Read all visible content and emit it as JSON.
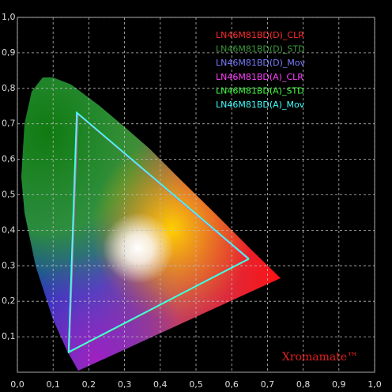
{
  "chart_data": {
    "type": "line",
    "watermark": "Xromamate™",
    "xlim": [
      0,
      1
    ],
    "ylim": [
      0,
      1
    ],
    "xticks": [
      {
        "value": 0,
        "label": "0,0"
      },
      {
        "value": 0.1,
        "label": "0,1"
      },
      {
        "value": 0.2,
        "label": "0,2"
      },
      {
        "value": 0.3,
        "label": "0,3"
      },
      {
        "value": 0.4,
        "label": "0,4"
      },
      {
        "value": 0.5,
        "label": "0,5"
      },
      {
        "value": 0.6,
        "label": "0,6"
      },
      {
        "value": 0.7,
        "label": "0,7"
      },
      {
        "value": 0.8,
        "label": "0,8"
      },
      {
        "value": 0.9,
        "label": "0,9"
      },
      {
        "value": 1,
        "label": "1,0"
      }
    ],
    "yticks": [
      {
        "value": 0.1,
        "label": "0,1"
      },
      {
        "value": 0.2,
        "label": "0,2"
      },
      {
        "value": 0.3,
        "label": "0,3"
      },
      {
        "value": 0.4,
        "label": "0,4"
      },
      {
        "value": 0.5,
        "label": "0,5"
      },
      {
        "value": 0.6,
        "label": "0,6"
      },
      {
        "value": 0.7,
        "label": "0,7"
      },
      {
        "value": 0.8,
        "label": "0,8"
      },
      {
        "value": 0.9,
        "label": "0,9"
      },
      {
        "value": 1,
        "label": "1,0"
      }
    ],
    "grid": true,
    "series": [
      {
        "name": "LN46M81BD(D)_CLR",
        "color": "#ff2a2a",
        "x": [
          0.648,
          0.168,
          0.144,
          0.648
        ],
        "values": [
          0.318,
          0.73,
          0.056,
          0.318
        ]
      },
      {
        "name": "LN46M81BD(D)_STD",
        "color": "#3c9a3c",
        "x": [
          0.649,
          0.168,
          0.144,
          0.649
        ],
        "values": [
          0.319,
          0.731,
          0.057,
          0.319
        ]
      },
      {
        "name": "LN46M81BD(D)_Mov",
        "color": "#7a7aff",
        "x": [
          0.648,
          0.167,
          0.143,
          0.648
        ],
        "values": [
          0.32,
          0.73,
          0.056,
          0.32
        ]
      },
      {
        "name": "LN46M81BD(A)_CLR",
        "color": "#ff40ff",
        "x": [
          0.647,
          0.169,
          0.145,
          0.647
        ],
        "values": [
          0.318,
          0.728,
          0.058,
          0.318
        ]
      },
      {
        "name": "LN46M81BD(A)_STD",
        "color": "#40ff40",
        "x": [
          0.648,
          0.167,
          0.144,
          0.648
        ],
        "values": [
          0.319,
          0.731,
          0.056,
          0.319
        ]
      },
      {
        "name": "LN46M81BD(A)_Mov",
        "color": "#40ffff",
        "x": [
          0.648,
          0.166,
          0.143,
          0.648
        ],
        "values": [
          0.32,
          0.732,
          0.057,
          0.32
        ]
      }
    ]
  }
}
